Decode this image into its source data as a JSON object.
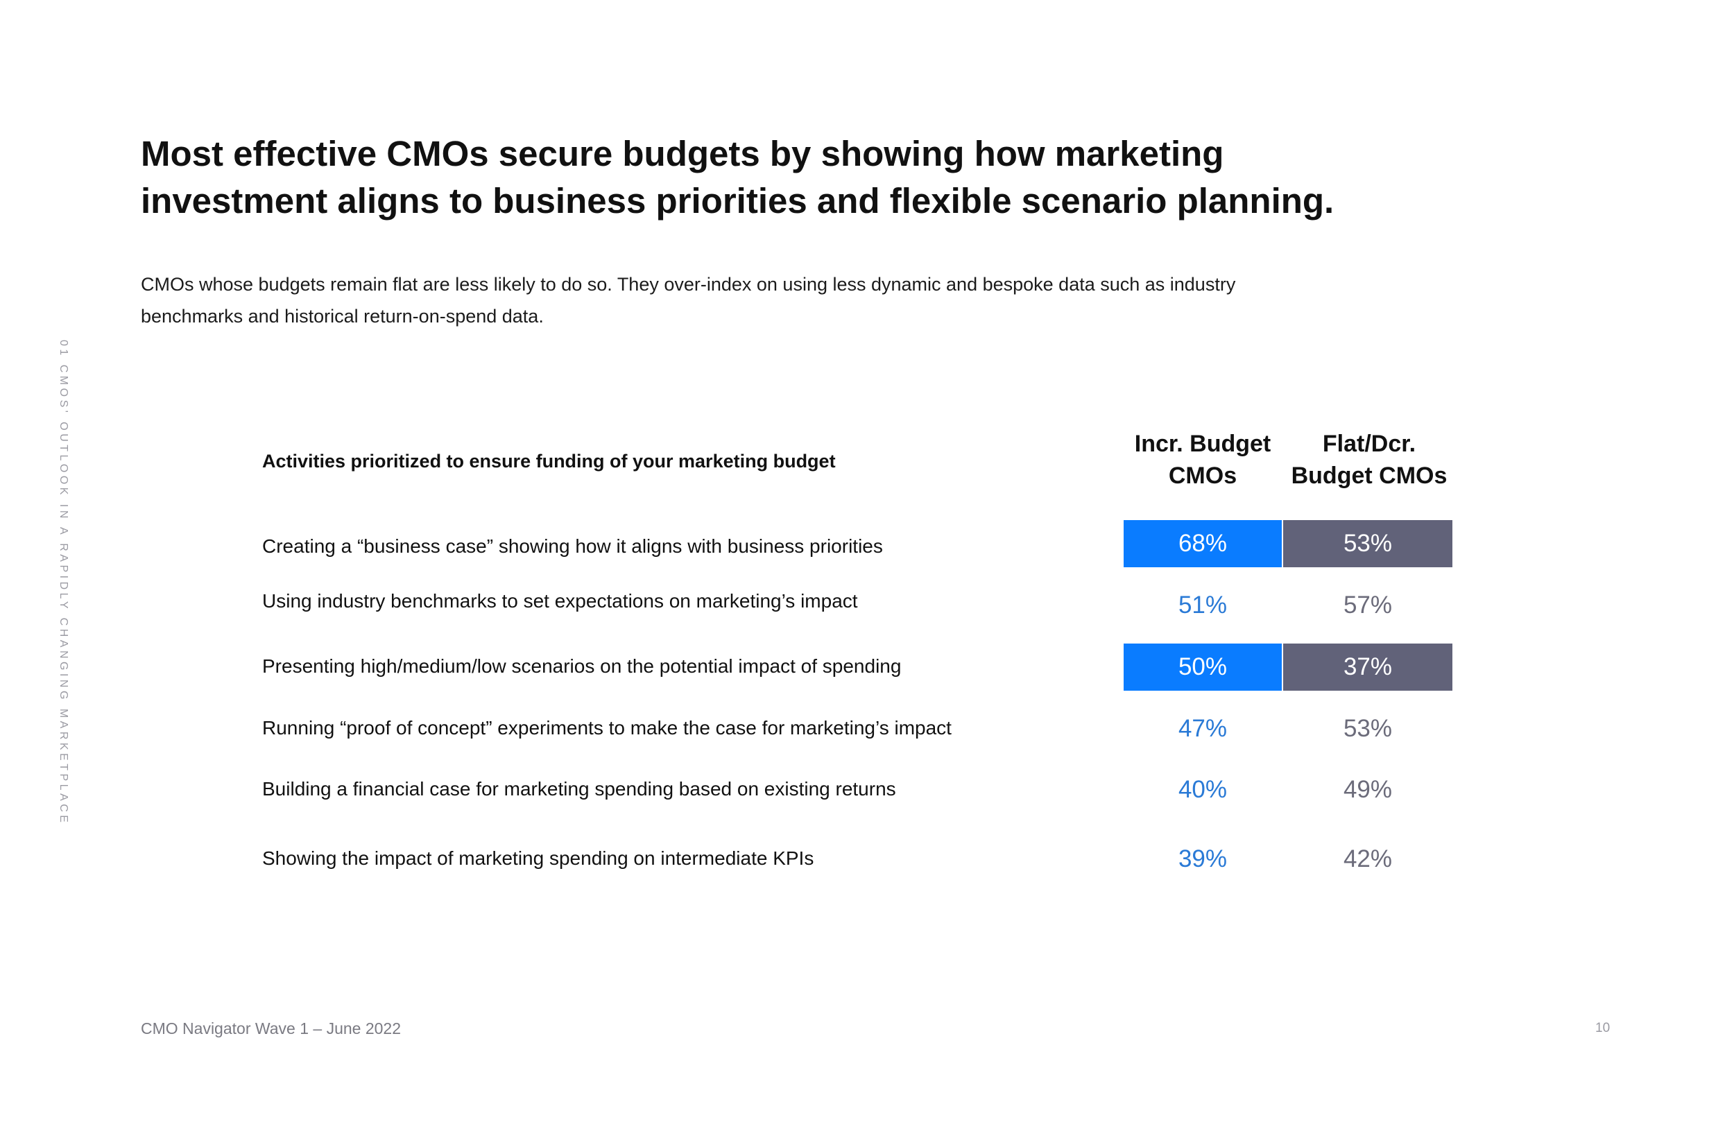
{
  "side_label": "01 CMOS' OUTLOOK IN A RAPIDLY CHANGING MARKETPLACE",
  "title_line1": "Most effective CMOs secure budgets by showing how marketing",
  "title_line2": "investment aligns to business priorities and flexible scenario planning.",
  "intro_line1": "CMOs whose budgets remain flat are less likely to do so. They over-index on using less dynamic and bespoke data such as industry",
  "intro_line2": "benchmarks and historical return-on-spend data.",
  "table": {
    "header": "Activities prioritized to ensure funding of your marketing budget",
    "col1_line1": "Incr. Budget",
    "col1_line2": "CMOs",
    "col2_line1": "Flat/Dcr.",
    "col2_line2": "Budget CMOs",
    "rows": [
      {
        "label": "Creating a “business case” showing how it aligns with business priorities",
        "incr": "68%",
        "flat": "53%"
      },
      {
        "label": "Using industry benchmarks to set expectations on marketing’s impact",
        "incr": "51%",
        "flat": "57%"
      },
      {
        "label": "Presenting high/medium/low scenarios on the potential impact of spending",
        "incr": "50%",
        "flat": "37%"
      },
      {
        "label": "Running “proof of concept” experiments to make the case for marketing’s impact",
        "incr": "47%",
        "flat": "53%"
      },
      {
        "label": "Building a financial case for marketing spending based on existing returns",
        "incr": "40%",
        "flat": "49%"
      },
      {
        "label": "Showing the impact of marketing spending on intermediate KPIs",
        "incr": "39%",
        "flat": "42%"
      }
    ]
  },
  "footer": "CMO Navigator Wave 1 – June 2022",
  "page_number": "10",
  "colors": {
    "incr_highlight": "#0a7cff",
    "flat_highlight": "#616279",
    "incr_text": "#2a7ad6",
    "flat_text": "#6b6b7a"
  }
}
